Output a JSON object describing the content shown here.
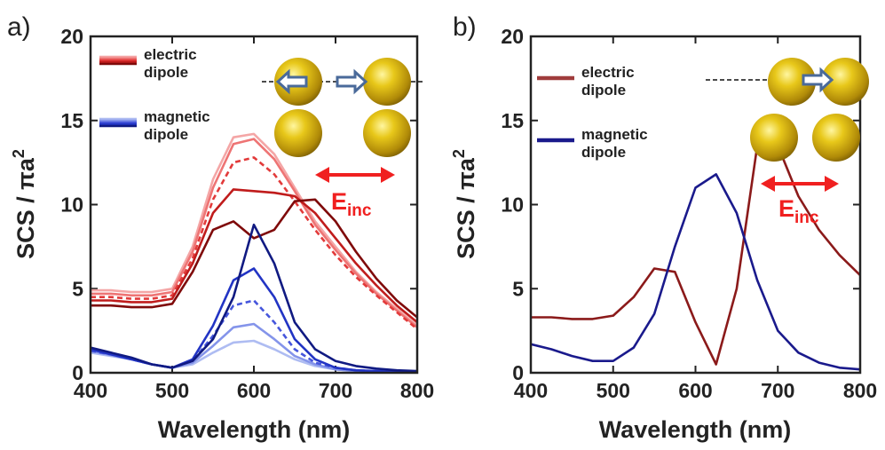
{
  "chart_data": [
    {
      "type": "line",
      "panel_label": "a)",
      "xlabel": "Wavelength (nm)",
      "ylabel": "SCS / πa",
      "ylabel_sup": "2",
      "annotation": "E",
      "annotation_sub": "inc",
      "xlim": [
        400,
        800
      ],
      "xticks": [
        400,
        500,
        600,
        700,
        800
      ],
      "ylim": [
        0,
        20
      ],
      "yticks": [
        0,
        5,
        10,
        15,
        20
      ],
      "x": [
        400,
        425,
        450,
        475,
        500,
        525,
        550,
        575,
        600,
        625,
        650,
        675,
        700,
        725,
        750,
        775,
        800
      ],
      "legend": [
        {
          "name": "electric dipole",
          "colors": [
            "#f4a6a6",
            "#ee7474",
            "#e23a3a",
            "#c01c1c",
            "#7f0a0a"
          ]
        },
        {
          "name": "magnetic dipole",
          "colors": [
            "#aebcf2",
            "#8494ea",
            "#4656dc",
            "#2234c4",
            "#101a82"
          ]
        }
      ],
      "series": [
        {
          "color": "#f4a6a6",
          "dash": false,
          "values": [
            4.9,
            4.9,
            4.8,
            4.8,
            5.0,
            7.5,
            11.5,
            14.0,
            14.2,
            13.0,
            11.0,
            9.0,
            7.5,
            6.0,
            4.8,
            3.8,
            2.8
          ]
        },
        {
          "color": "#ee7474",
          "dash": false,
          "values": [
            4.7,
            4.7,
            4.6,
            4.6,
            4.8,
            7.2,
            11.0,
            13.6,
            13.9,
            12.7,
            10.8,
            8.8,
            7.3,
            5.9,
            4.7,
            3.7,
            2.7
          ]
        },
        {
          "color": "#e23a3a",
          "dash": true,
          "values": [
            4.5,
            4.5,
            4.4,
            4.4,
            4.6,
            6.8,
            10.3,
            12.5,
            12.8,
            11.8,
            10.2,
            8.5,
            7.0,
            5.7,
            4.6,
            3.6,
            2.6
          ]
        },
        {
          "color": "#c01c1c",
          "dash": false,
          "values": [
            4.3,
            4.3,
            4.2,
            4.2,
            4.4,
            6.5,
            9.5,
            10.9,
            10.8,
            10.7,
            10.5,
            9.5,
            8.0,
            6.5,
            5.2,
            4.0,
            3.0
          ]
        },
        {
          "color": "#7f0a0a",
          "dash": false,
          "values": [
            4.0,
            4.0,
            3.9,
            3.9,
            4.1,
            6.0,
            8.5,
            9.0,
            8.0,
            8.5,
            10.2,
            10.3,
            9.0,
            7.2,
            5.6,
            4.3,
            3.3
          ]
        },
        {
          "color": "#aebcf2",
          "dash": false,
          "values": [
            1.2,
            1.0,
            0.8,
            0.5,
            0.3,
            0.5,
            1.2,
            1.8,
            1.9,
            1.4,
            0.8,
            0.4,
            0.2,
            0.1,
            0.1,
            0.05,
            0.05
          ]
        },
        {
          "color": "#8494ea",
          "dash": false,
          "values": [
            1.3,
            1.05,
            0.8,
            0.5,
            0.3,
            0.6,
            1.6,
            2.7,
            2.9,
            2.0,
            1.0,
            0.5,
            0.2,
            0.1,
            0.1,
            0.05,
            0.05
          ]
        },
        {
          "color": "#4656dc",
          "dash": true,
          "values": [
            1.3,
            1.1,
            0.8,
            0.5,
            0.3,
            0.7,
            2.2,
            4.0,
            4.3,
            3.0,
            1.4,
            0.6,
            0.3,
            0.15,
            0.1,
            0.05,
            0.05
          ]
        },
        {
          "color": "#2234c4",
          "dash": false,
          "values": [
            1.4,
            1.1,
            0.8,
            0.5,
            0.3,
            0.8,
            2.8,
            5.5,
            6.2,
            4.5,
            2.0,
            0.8,
            0.3,
            0.15,
            0.1,
            0.05,
            0.05
          ]
        },
        {
          "color": "#101a82",
          "dash": false,
          "values": [
            1.5,
            1.2,
            0.9,
            0.5,
            0.3,
            0.7,
            2.0,
            4.5,
            8.8,
            6.5,
            3.0,
            1.4,
            0.7,
            0.4,
            0.25,
            0.15,
            0.1
          ]
        }
      ]
    },
    {
      "type": "line",
      "panel_label": "b)",
      "xlabel": "Wavelength (nm)",
      "ylabel": "SCS / πa",
      "ylabel_sup": "2",
      "annotation": "E",
      "annotation_sub": "inc",
      "xlim": [
        400,
        800
      ],
      "xticks": [
        400,
        500,
        600,
        700,
        800
      ],
      "ylim": [
        0,
        20
      ],
      "yticks": [
        0,
        5,
        10,
        15,
        20
      ],
      "x": [
        400,
        425,
        450,
        475,
        500,
        525,
        550,
        575,
        600,
        625,
        650,
        675,
        700,
        725,
        750,
        775,
        800
      ],
      "legend": [
        {
          "name": "electric dipole",
          "colors": [
            "#a03c3c"
          ]
        },
        {
          "name": "magnetic dipole",
          "colors": [
            "#1a1a8c"
          ]
        }
      ],
      "series": [
        {
          "color": "#8b1a1a",
          "dash": false,
          "values": [
            3.3,
            3.3,
            3.2,
            3.2,
            3.4,
            4.5,
            6.2,
            6.0,
            3.0,
            0.5,
            5.0,
            13.5,
            13.5,
            10.5,
            8.5,
            7.0,
            5.8
          ]
        },
        {
          "color": "#1a1a8c",
          "dash": false,
          "values": [
            1.7,
            1.4,
            1.0,
            0.7,
            0.7,
            1.5,
            3.5,
            7.5,
            11.0,
            11.8,
            9.5,
            5.5,
            2.5,
            1.2,
            0.6,
            0.3,
            0.2
          ]
        }
      ]
    }
  ]
}
